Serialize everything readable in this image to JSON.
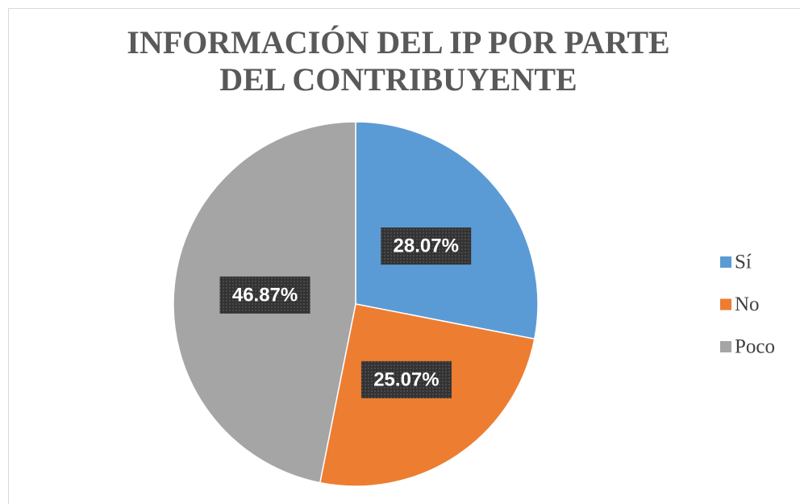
{
  "chart_data": {
    "type": "pie",
    "title": "INFORMACIÓN DEL IP POR PARTE DEL CONTRIBUYENTE",
    "categories": [
      "Sí",
      "No",
      "Poco"
    ],
    "values": [
      28.07,
      25.07,
      46.87
    ],
    "value_labels": [
      "28.07%",
      "25.07%",
      "46.87%"
    ],
    "colors": [
      "#5b9bd5",
      "#ed7d31",
      "#a5a5a5"
    ],
    "legend": "right"
  }
}
